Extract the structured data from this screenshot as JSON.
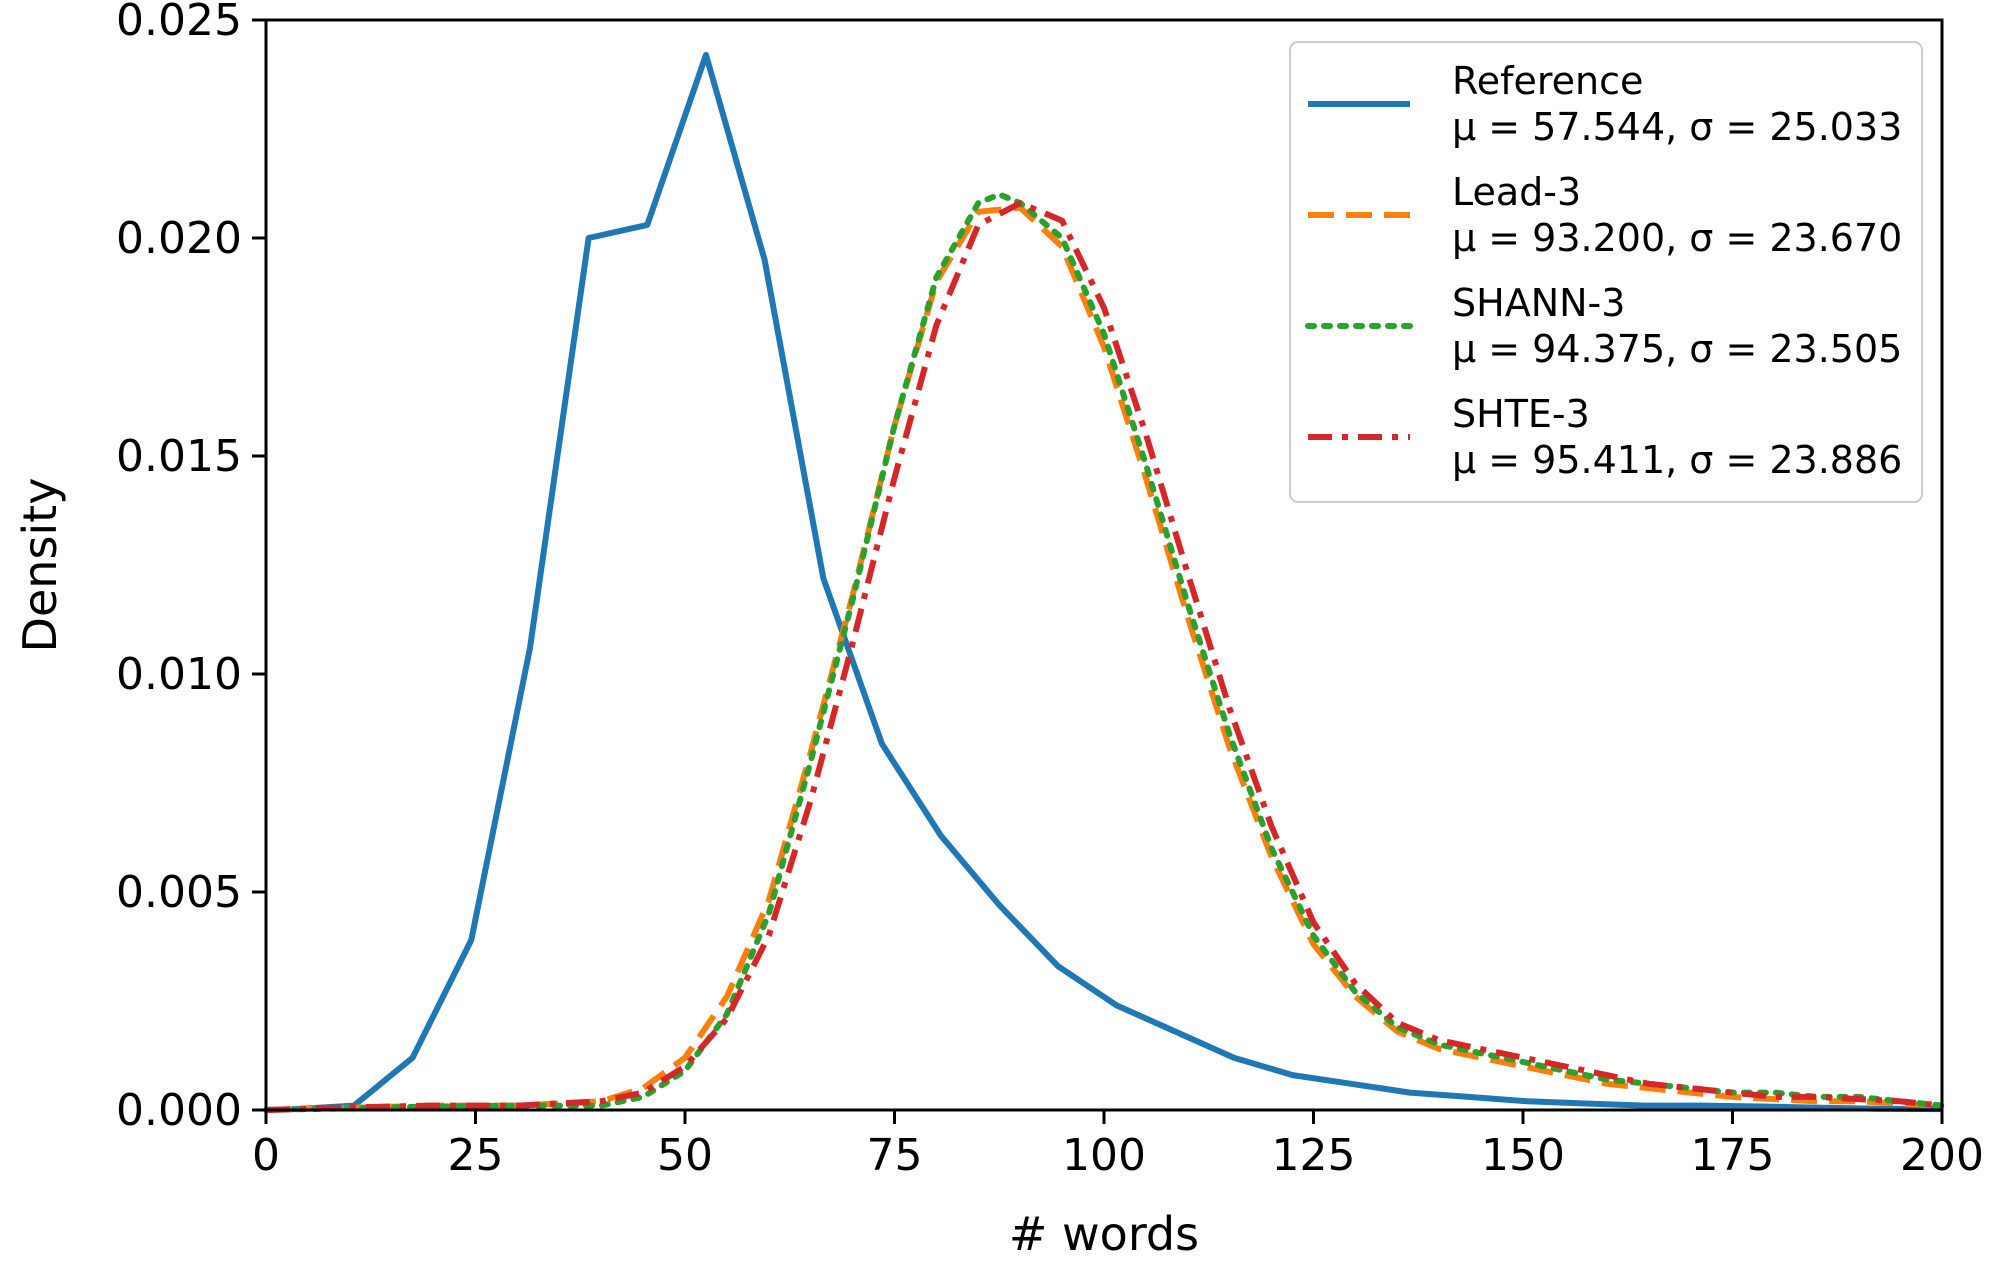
{
  "chart_data": {
    "type": "line",
    "title": "",
    "xlabel": "# words",
    "ylabel": "Density",
    "xlim": [
      0,
      200
    ],
    "ylim": [
      0,
      0.025
    ],
    "grid": false,
    "legend_position": "top-right",
    "xticks": [
      0,
      25,
      50,
      75,
      100,
      125,
      150,
      175,
      200
    ],
    "yticks": [
      0,
      0.005,
      0.01,
      0.015,
      0.02,
      0.025
    ],
    "xtick_labels": [
      "0",
      "25",
      "50",
      "75",
      "100",
      "125",
      "150",
      "175",
      "200"
    ],
    "ytick_labels": [
      "0.000",
      "0.005",
      "0.010",
      "0.015",
      "0.020",
      "0.025"
    ],
    "series": [
      {
        "name": "Reference",
        "stats": "μ = 57.544, σ = 25.033",
        "color": "#1f77b4",
        "style": "solid",
        "x": [
          0,
          3.5,
          10.5,
          17.5,
          24.5,
          31.5,
          38.5,
          45.5,
          52.5,
          59.5,
          66.5,
          73.5,
          80.5,
          87.5,
          94.5,
          101.5,
          108.5,
          115.5,
          122.5,
          129.5,
          136.5,
          143.5,
          150.5,
          157.5,
          164.5,
          171.5,
          178.5,
          185.5,
          192.5,
          200
        ],
        "y": [
          0,
          2e-05,
          0.0001,
          0.0012,
          0.0039,
          0.0106,
          0.02,
          0.0203,
          0.0242,
          0.0195,
          0.0122,
          0.0084,
          0.0063,
          0.0047,
          0.0033,
          0.0024,
          0.0018,
          0.0012,
          0.0008,
          0.0006,
          0.0004,
          0.0003,
          0.0002,
          0.00015,
          0.0001,
          0.0001,
          8e-05,
          5e-05,
          3e-05,
          2e-05
        ]
      },
      {
        "name": "Lead-3",
        "stats": "μ = 93.200, σ = 23.670",
        "color": "#ff7f0e",
        "style": "dashed",
        "x": [
          0,
          5,
          10,
          20,
          30,
          40,
          45,
          50,
          55,
          60,
          65,
          70,
          75,
          80,
          85,
          90,
          95,
          100,
          105,
          110,
          115,
          120,
          125,
          130,
          135,
          140,
          145,
          150,
          155,
          160,
          165,
          170,
          175,
          180,
          185,
          190,
          195,
          200
        ],
        "y": [
          0,
          3e-05,
          5e-05,
          0.0001,
          0.0001,
          0.0002,
          0.0005,
          0.0012,
          0.0026,
          0.0048,
          0.0082,
          0.0118,
          0.0157,
          0.019,
          0.0206,
          0.0207,
          0.0198,
          0.0175,
          0.0145,
          0.0113,
          0.0083,
          0.0058,
          0.0038,
          0.0026,
          0.0018,
          0.0014,
          0.0012,
          0.001,
          0.0008,
          0.0006,
          0.0005,
          0.0004,
          0.0003,
          0.00025,
          0.0002,
          0.0002,
          0.00015,
          0.0001
        ]
      },
      {
        "name": "SHANN-3",
        "stats": "μ = 94.375, σ = 23.505",
        "color": "#2ca02c",
        "style": "dotted",
        "x": [
          0,
          5,
          10,
          20,
          30,
          40,
          45,
          50,
          55,
          60,
          65,
          70,
          75,
          80,
          85,
          87.5,
          90,
          95,
          100,
          105,
          110,
          115,
          120,
          125,
          130,
          135,
          140,
          145,
          150,
          155,
          160,
          165,
          170,
          175,
          180,
          185,
          190,
          195,
          200
        ],
        "y": [
          0,
          2e-05,
          4e-05,
          8e-05,
          0.0001,
          0.0001,
          0.0003,
          0.0009,
          0.0022,
          0.0045,
          0.008,
          0.0117,
          0.0157,
          0.0191,
          0.0208,
          0.021,
          0.0208,
          0.02,
          0.0178,
          0.0148,
          0.0116,
          0.0086,
          0.006,
          0.004,
          0.0027,
          0.0019,
          0.0015,
          0.0013,
          0.0011,
          0.0009,
          0.0007,
          0.0006,
          0.0005,
          0.0004,
          0.0004,
          0.0003,
          0.0003,
          0.0002,
          0.0001
        ]
      },
      {
        "name": "SHTE-3",
        "stats": "μ = 95.411, σ = 23.886",
        "color": "#d62728",
        "style": "dashdot",
        "x": [
          0,
          5,
          10,
          20,
          30,
          40,
          45,
          50,
          55,
          60,
          65,
          70,
          75,
          80,
          85,
          90,
          95,
          100,
          105,
          110,
          115,
          120,
          125,
          130,
          135,
          140,
          145,
          150,
          155,
          160,
          165,
          170,
          175,
          180,
          185,
          190,
          195,
          200
        ],
        "y": [
          0,
          3e-05,
          6e-05,
          0.0001,
          0.0001,
          0.0002,
          0.0004,
          0.001,
          0.0021,
          0.004,
          0.0071,
          0.0107,
          0.0145,
          0.018,
          0.0203,
          0.0208,
          0.0204,
          0.0184,
          0.0155,
          0.0123,
          0.0092,
          0.0065,
          0.0043,
          0.0029,
          0.002,
          0.0016,
          0.0014,
          0.0012,
          0.001,
          0.0008,
          0.0006,
          0.0005,
          0.0004,
          0.0003,
          0.0003,
          0.00025,
          0.0002,
          0.0001
        ]
      }
    ]
  }
}
